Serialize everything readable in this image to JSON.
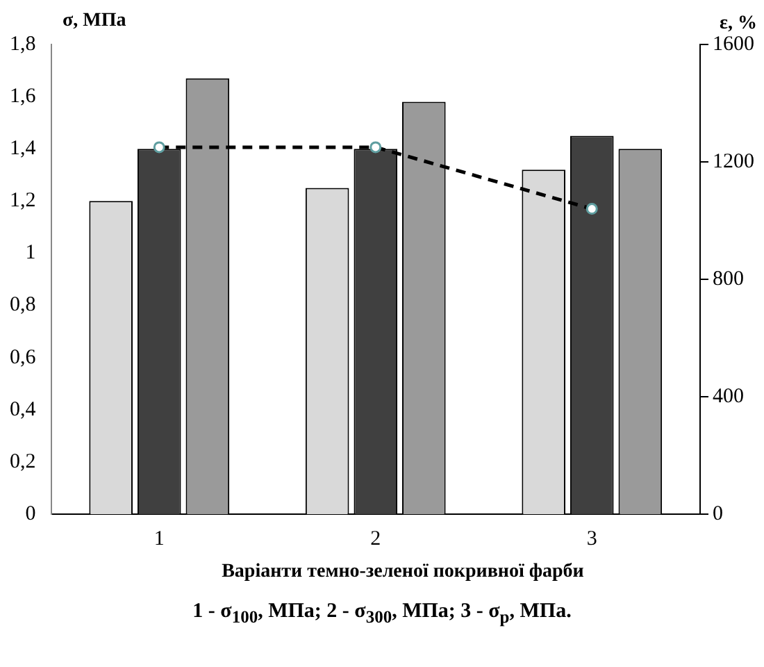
{
  "chart_data": {
    "type": "bar",
    "xlabel": "Варіанти темно-зеленої покривної фарби",
    "ylabel": "σ, МПа",
    "y2label": "ε, %",
    "categories": [
      "1",
      "2",
      "3"
    ],
    "series": [
      {
        "color": "#d9d9d9",
        "values": [
          1.2,
          1.25,
          1.32
        ]
      },
      {
        "color": "#404040",
        "values": [
          1.4,
          1.4,
          1.45
        ]
      },
      {
        "color": "#9a9a9a",
        "values": [
          1.67,
          1.58,
          1.4
        ]
      },
      {
        "type": "line",
        "axis": "y2",
        "color": "#000000",
        "values": [
          1250,
          1250,
          1040
        ]
      }
    ],
    "ylim": [
      0,
      1.8
    ],
    "yticks": [
      0,
      {
        "value": 0.2,
        "label": "0,2"
      },
      {
        "value": 0.4,
        "label": "0,4"
      },
      {
        "value": 0.6,
        "label": "0,6"
      },
      {
        "value": 0.8,
        "label": "0,8"
      },
      1,
      {
        "value": 1.2,
        "label": "1,2"
      },
      {
        "value": 1.4,
        "label": "1,4"
      },
      {
        "value": 1.6,
        "label": "1,6"
      },
      {
        "value": 1.8,
        "label": "1,8"
      }
    ],
    "y2lim": [
      0,
      1600
    ],
    "y2ticks": [
      0,
      400,
      800,
      1200,
      1600
    ],
    "grid": false,
    "legend": false,
    "marker": "circle",
    "line_style": "dashed",
    "annotations": [
      "1 - σ$_{100}$, МПа; 2 - σ$_{300}$, МПа; 3 - σ$_{р}$, МПа."
    ]
  }
}
